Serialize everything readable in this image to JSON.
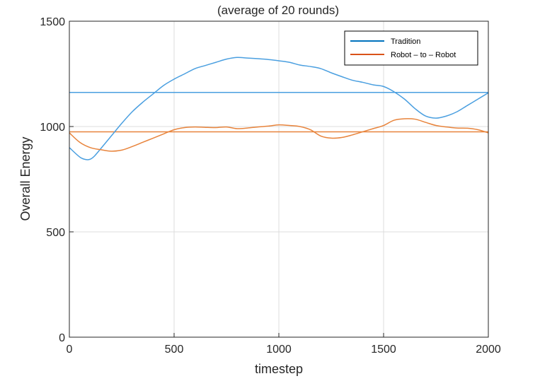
{
  "chart_data": {
    "type": "line",
    "title": "(average of 20 rounds)",
    "xlabel": "timestep",
    "ylabel": "Overall Energy",
    "xlim": [
      0,
      2000
    ],
    "ylim": [
      0,
      1500
    ],
    "xticks": [
      0,
      500,
      1000,
      1500,
      2000
    ],
    "yticks": [
      0,
      500,
      1000,
      1500
    ],
    "xtick_labels": [
      "0",
      "500",
      "1000",
      "1500",
      "2000"
    ],
    "ytick_labels": [
      "0",
      "500",
      "1000",
      "1500"
    ],
    "grid": true,
    "legend_position": "top-right",
    "series": [
      {
        "name": "Tradition",
        "color": "#0072BD",
        "line_color": "#4A9FE0",
        "x": [
          0,
          50,
          80,
          100,
          120,
          150,
          200,
          250,
          300,
          350,
          400,
          450,
          500,
          550,
          600,
          650,
          700,
          750,
          800,
          850,
          900,
          950,
          1000,
          1050,
          1100,
          1150,
          1200,
          1250,
          1300,
          1350,
          1400,
          1450,
          1500,
          1550,
          1600,
          1650,
          1700,
          1750,
          1800,
          1850,
          1900,
          1950,
          2000
        ],
        "y": [
          900,
          855,
          843,
          845,
          860,
          895,
          955,
          1015,
          1070,
          1115,
          1155,
          1195,
          1225,
          1250,
          1275,
          1290,
          1305,
          1320,
          1328,
          1325,
          1322,
          1318,
          1312,
          1305,
          1292,
          1285,
          1275,
          1255,
          1237,
          1220,
          1210,
          1198,
          1190,
          1165,
          1130,
          1085,
          1050,
          1040,
          1050,
          1070,
          1100,
          1130,
          1160
        ],
        "mean": 1162
      },
      {
        "name": "Robot – to – Robot",
        "color": "#D95319",
        "line_color": "#E8843C",
        "x": [
          0,
          50,
          100,
          150,
          200,
          250,
          300,
          350,
          400,
          450,
          500,
          550,
          600,
          650,
          700,
          750,
          800,
          850,
          900,
          950,
          1000,
          1050,
          1100,
          1150,
          1200,
          1250,
          1300,
          1350,
          1400,
          1450,
          1500,
          1550,
          1600,
          1650,
          1700,
          1750,
          1800,
          1850,
          1900,
          1950,
          2000
        ],
        "y": [
          970,
          925,
          900,
          890,
          883,
          888,
          905,
          925,
          945,
          965,
          985,
          995,
          998,
          996,
          995,
          998,
          990,
          993,
          998,
          1002,
          1008,
          1005,
          1000,
          985,
          955,
          945,
          948,
          960,
          975,
          990,
          1005,
          1030,
          1037,
          1035,
          1020,
          1005,
          998,
          993,
          992,
          985,
          970
        ],
        "mean": 975
      }
    ]
  }
}
